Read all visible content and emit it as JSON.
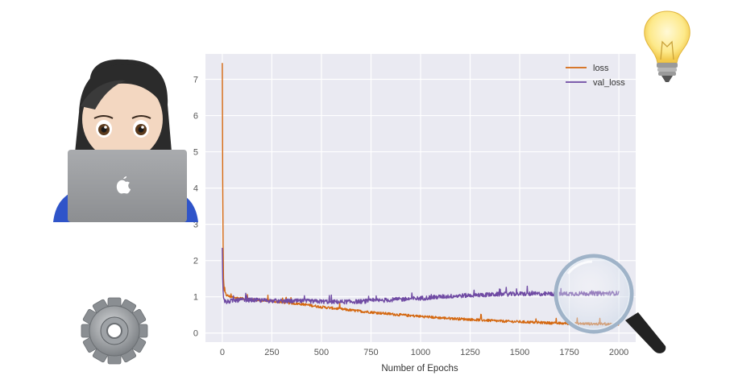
{
  "chart_data": {
    "type": "line",
    "title": "",
    "xlabel": "Number of Epochs",
    "ylabel": "",
    "xlim": [
      -85,
      2085
    ],
    "ylim": [
      -0.25,
      7.7
    ],
    "xticks": [
      0,
      250,
      500,
      750,
      1000,
      1250,
      1500,
      1750,
      2000
    ],
    "yticks": [
      0,
      1,
      2,
      3,
      4,
      5,
      6,
      7
    ],
    "grid": true,
    "legend_position": "top-right",
    "background_color": "#eaeaf2",
    "series": [
      {
        "name": "loss",
        "color": "#d4670f",
        "x": [
          0,
          2,
          5,
          10,
          20,
          40,
          60,
          100,
          150,
          200,
          250,
          300,
          400,
          500,
          600,
          700,
          800,
          900,
          1000,
          1100,
          1200,
          1300,
          1400,
          1500,
          1600,
          1700,
          1800,
          1900,
          2000
        ],
        "y": [
          7.45,
          4.2,
          1.6,
          1.15,
          1.05,
          1.0,
          0.98,
          0.95,
          0.92,
          0.9,
          0.88,
          0.85,
          0.8,
          0.72,
          0.66,
          0.6,
          0.55,
          0.5,
          0.46,
          0.42,
          0.39,
          0.36,
          0.33,
          0.31,
          0.29,
          0.27,
          0.26,
          0.25,
          0.24
        ]
      },
      {
        "name": "val_loss",
        "color": "#6f4aa3",
        "x": [
          0,
          2,
          5,
          10,
          20,
          40,
          60,
          100,
          150,
          200,
          250,
          300,
          400,
          500,
          600,
          700,
          800,
          900,
          1000,
          1100,
          1200,
          1300,
          1400,
          1500,
          1600,
          1700,
          1800,
          1900,
          2000
        ],
        "y": [
          2.35,
          1.5,
          1.0,
          0.9,
          0.85,
          0.88,
          0.9,
          0.91,
          0.91,
          0.9,
          0.89,
          0.88,
          0.88,
          0.87,
          0.86,
          0.87,
          0.9,
          0.93,
          0.96,
          1.0,
          1.03,
          1.05,
          1.07,
          1.08,
          1.08,
          1.08,
          1.09,
          1.09,
          1.1
        ]
      }
    ]
  },
  "decorations": {
    "icons": [
      "person-at-laptop-icon",
      "light-bulb-icon",
      "gear-icon",
      "magnifying-glass-icon"
    ]
  }
}
